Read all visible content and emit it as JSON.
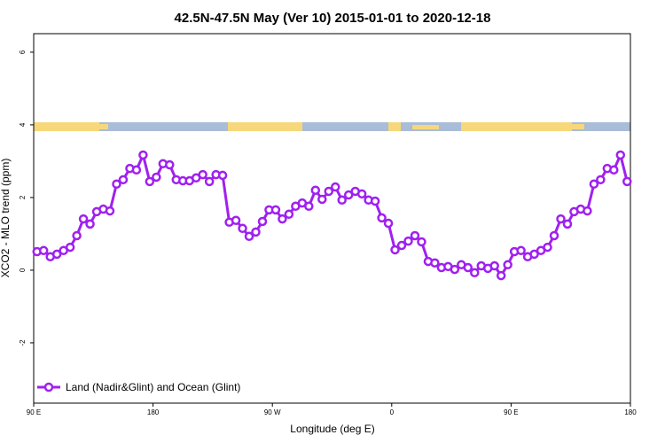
{
  "chart_data": {
    "type": "line",
    "title": "42.5N-47.5N May (Ver 10)   2015-01-01 to 2020-12-18",
    "x_label": "Longitude (deg E)",
    "y_label": "XCO2 - MLO trend (ppm)",
    "x": [
      92.5,
      97.5,
      102.5,
      107.5,
      112.5,
      117.5,
      122.5,
      127.5,
      132.5,
      137.5,
      142.5,
      147.5,
      152.5,
      157.5,
      162.5,
      167.5,
      172.5,
      177.5,
      182.5,
      187.5,
      192.5,
      197.5,
      202.5,
      207.5,
      212.5,
      217.5,
      222.5,
      227.5,
      232.5,
      237.5,
      242.5,
      247.5,
      252.5,
      257.5,
      262.5,
      267.5,
      272.5,
      277.5,
      282.5,
      287.5,
      292.5,
      297.5,
      302.5,
      307.5,
      312.5,
      317.5,
      322.5,
      327.5,
      332.5,
      337.5,
      342.5,
      347.5,
      352.5,
      357.5,
      362.5,
      367.5,
      372.5,
      377.5,
      382.5,
      387.5,
      392.5,
      397.5,
      402.5,
      407.5,
      412.5,
      417.5,
      422.5,
      427.5,
      432.5,
      437.5,
      442.5,
      447.5,
      452.5,
      457.5,
      462.5,
      467.5,
      472.5,
      477.5,
      482.5,
      487.5,
      492.5,
      497.5,
      502.5,
      507.5,
      512.5,
      517.5,
      522.5,
      527.5,
      532.5,
      537.5
    ],
    "series": [
      {
        "name": "Land (Nadir&Glint) and Ocean (Glint)",
        "color": "#a020f0",
        "values": [
          0.51,
          0.54,
          0.37,
          0.44,
          0.54,
          0.63,
          0.95,
          1.41,
          1.27,
          1.61,
          1.68,
          1.63,
          2.37,
          2.49,
          2.8,
          2.76,
          3.17,
          2.44,
          2.56,
          2.93,
          2.9,
          2.49,
          2.46,
          2.46,
          2.54,
          2.63,
          2.44,
          2.63,
          2.61,
          1.32,
          1.37,
          1.15,
          0.93,
          1.05,
          1.34,
          1.66,
          1.66,
          1.41,
          1.54,
          1.76,
          1.85,
          1.76,
          2.2,
          1.95,
          2.17,
          2.29,
          1.93,
          2.07,
          2.17,
          2.1,
          1.93,
          1.9,
          1.44,
          1.29,
          0.56,
          0.68,
          0.8,
          0.95,
          0.78,
          0.24,
          0.2,
          0.07,
          0.1,
          0.02,
          0.15,
          0.07,
          -0.07,
          0.12,
          0.05,
          0.12,
          -0.15,
          0.15,
          0.51,
          0.54,
          0.37,
          0.44,
          0.54,
          0.63,
          0.95,
          1.41,
          1.27,
          1.61,
          1.68,
          1.63,
          2.37,
          2.49,
          2.8,
          2.76,
          3.17,
          2.44
        ]
      }
    ],
    "xlim": [
      90,
      540
    ],
    "xticks": [
      {
        "value": 90,
        "label": "90 E"
      },
      180,
      {
        "value": 270,
        "label": "90 W"
      },
      {
        "value": 360,
        "label": "0"
      },
      {
        "value": 450,
        "label": "90 E"
      },
      {
        "value": 540,
        "label": "180"
      }
    ],
    "ylim": [
      -3.66,
      6.51
    ],
    "yticks": [
      -2,
      0,
      2,
      4,
      6
    ],
    "legend": "bottom-left"
  }
}
